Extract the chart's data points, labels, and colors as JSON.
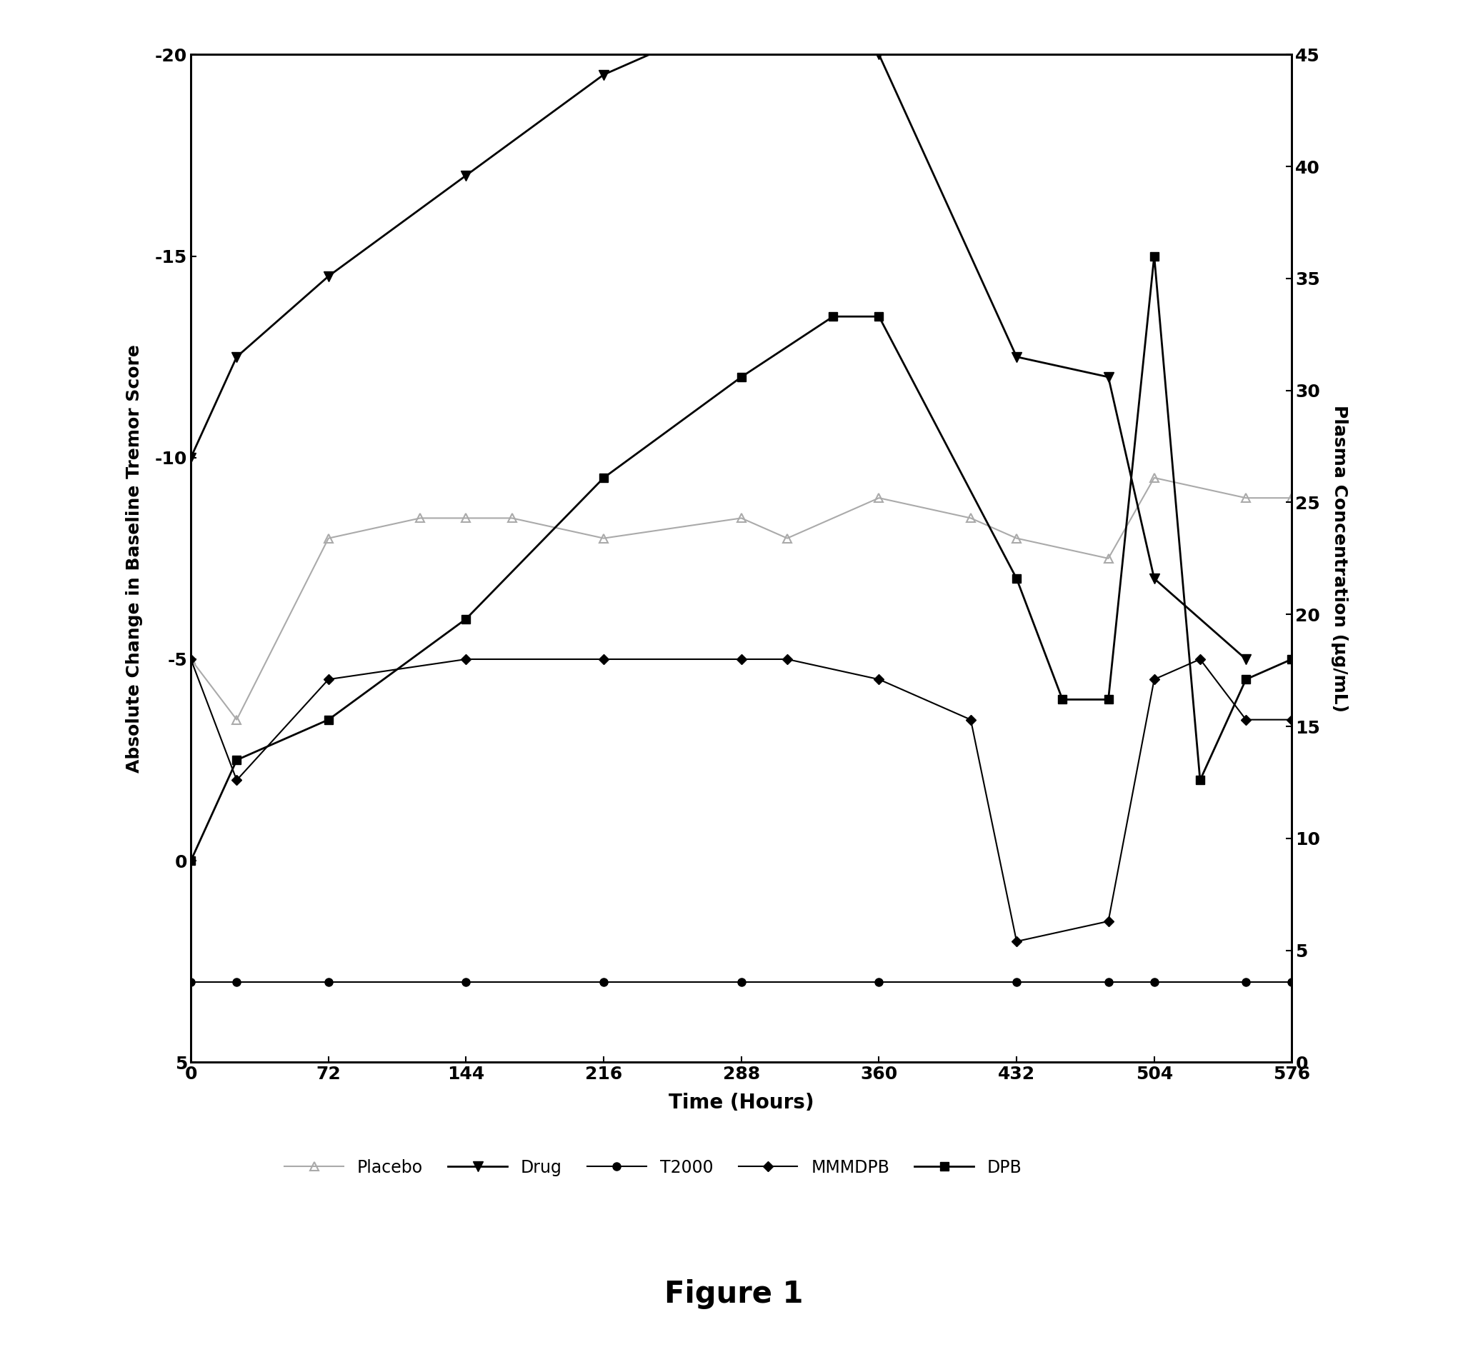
{
  "title": "Figure 1",
  "xlabel": "Time (Hours)",
  "ylabel_left": "Absolute Change in Baseline Tremor Score",
  "ylabel_right": "Plasma Concentration (μg/mL)",
  "xlim": [
    0,
    576
  ],
  "ylim_left": [
    5,
    -20
  ],
  "ylim_right": [
    0,
    45
  ],
  "xticks": [
    0,
    72,
    144,
    216,
    288,
    360,
    432,
    504,
    576
  ],
  "yticks_left": [
    5,
    0,
    -5,
    -10,
    -15,
    -20
  ],
  "yticks_right": [
    0,
    5,
    10,
    15,
    20,
    25,
    30,
    35,
    40,
    45
  ],
  "placebo": {
    "x": [
      0,
      24,
      72,
      120,
      144,
      168,
      216,
      288,
      312,
      360,
      408,
      432,
      480,
      504,
      552,
      576
    ],
    "y": [
      -5,
      -3.5,
      -8,
      -8.5,
      -8.5,
      -8.5,
      -8.0,
      -8.5,
      -8.0,
      -9.0,
      -8.5,
      -8.0,
      -7.5,
      -9.5,
      -9.0,
      -9.0
    ],
    "color": "#aaaaaa",
    "marker": "^",
    "markersize": 8,
    "linewidth": 1.5
  },
  "drug": {
    "x": [
      0,
      24,
      72,
      144,
      216,
      288,
      336,
      360,
      432,
      480,
      504,
      552
    ],
    "y": [
      -10,
      -12.5,
      -14.5,
      -17.0,
      -19.5,
      -21.0,
      -21.0,
      -20.0,
      -12.5,
      -12.0,
      -7.0,
      -5.0
    ],
    "color": "#000000",
    "marker": "v",
    "markersize": 10,
    "linewidth": 2.0
  },
  "t2000": {
    "x": [
      0,
      24,
      72,
      144,
      216,
      288,
      360,
      432,
      480,
      504,
      552,
      576
    ],
    "y": [
      3,
      3,
      3,
      3,
      3,
      3,
      3,
      3,
      3,
      3,
      3,
      3
    ],
    "color": "#000000",
    "marker": "o",
    "markersize": 8,
    "linewidth": 1.5
  },
  "mmmdpb": {
    "x": [
      0,
      24,
      72,
      144,
      216,
      288,
      312,
      360,
      408,
      432,
      480,
      504,
      528,
      552,
      576
    ],
    "y": [
      -5,
      -2,
      -4.5,
      -5.0,
      -5.0,
      -5.0,
      -5.0,
      -4.5,
      -3.5,
      2.0,
      1.5,
      -4.5,
      -5.0,
      -3.5,
      -3.5
    ],
    "color": "#000000",
    "marker": "D",
    "markersize": 7,
    "linewidth": 1.5
  },
  "dpb": {
    "x": [
      0,
      24,
      72,
      144,
      216,
      288,
      336,
      360,
      432,
      456,
      480,
      504,
      528,
      552,
      576
    ],
    "y": [
      0.0,
      -2.5,
      -3.5,
      -6.0,
      -9.5,
      -12.0,
      -13.5,
      -13.5,
      -7.0,
      -4.0,
      -4.0,
      -15.0,
      -2.0,
      -4.5,
      -5.0
    ],
    "color": "#000000",
    "marker": "s",
    "markersize": 9,
    "linewidth": 2.0
  },
  "background_color": "#ffffff"
}
